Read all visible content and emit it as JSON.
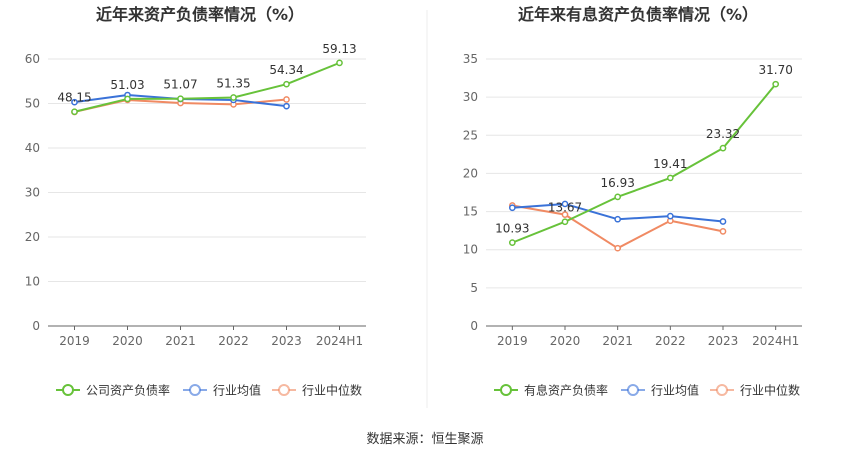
{
  "source": "数据来源：恒生聚源",
  "chart_data": [
    {
      "type": "line",
      "title": "近年来资产负债率情况（%）",
      "categories": [
        "2019",
        "2020",
        "2021",
        "2022",
        "2023",
        "2024H1"
      ],
      "ylim": [
        0,
        60
      ],
      "yticks": [
        0,
        10,
        20,
        30,
        40,
        50,
        60
      ],
      "grid": true,
      "legend_position": "bottom",
      "series": [
        {
          "name": "公司资产负债率",
          "color": "#67c23a",
          "values": [
            48.15,
            51.03,
            51.07,
            51.35,
            54.34,
            59.13
          ],
          "labels": [
            "48.15",
            "51.03",
            "51.07",
            "51.35",
            "54.34",
            "59.13"
          ]
        },
        {
          "name": "行业均值",
          "color": "#3a72d8",
          "values": [
            50.3,
            51.9,
            51.0,
            50.8,
            49.4,
            null
          ]
        },
        {
          "name": "行业中位数",
          "color": "#f08a63",
          "values": [
            48.1,
            50.8,
            50.1,
            49.8,
            50.9,
            null
          ]
        }
      ]
    },
    {
      "type": "line",
      "title": "近年来有息资产负债率情况（%）",
      "categories": [
        "2019",
        "2020",
        "2021",
        "2022",
        "2023",
        "2024H1"
      ],
      "ylim": [
        0,
        35
      ],
      "yticks": [
        0,
        5,
        10,
        15,
        20,
        25,
        30,
        35
      ],
      "grid": true,
      "legend_position": "bottom",
      "series": [
        {
          "name": "有息资产负债率",
          "color": "#67c23a",
          "values": [
            10.93,
            13.67,
            16.93,
            19.41,
            23.32,
            31.7
          ],
          "labels": [
            "10.93",
            "13.67",
            "16.93",
            "19.41",
            "23.32",
            "31.70"
          ]
        },
        {
          "name": "行业均值",
          "color": "#3a72d8",
          "values": [
            15.5,
            16.0,
            14.0,
            14.4,
            13.7,
            null
          ]
        },
        {
          "name": "行业中位数",
          "color": "#f08a63",
          "values": [
            15.8,
            14.6,
            10.2,
            13.8,
            12.4,
            null
          ]
        }
      ]
    }
  ]
}
